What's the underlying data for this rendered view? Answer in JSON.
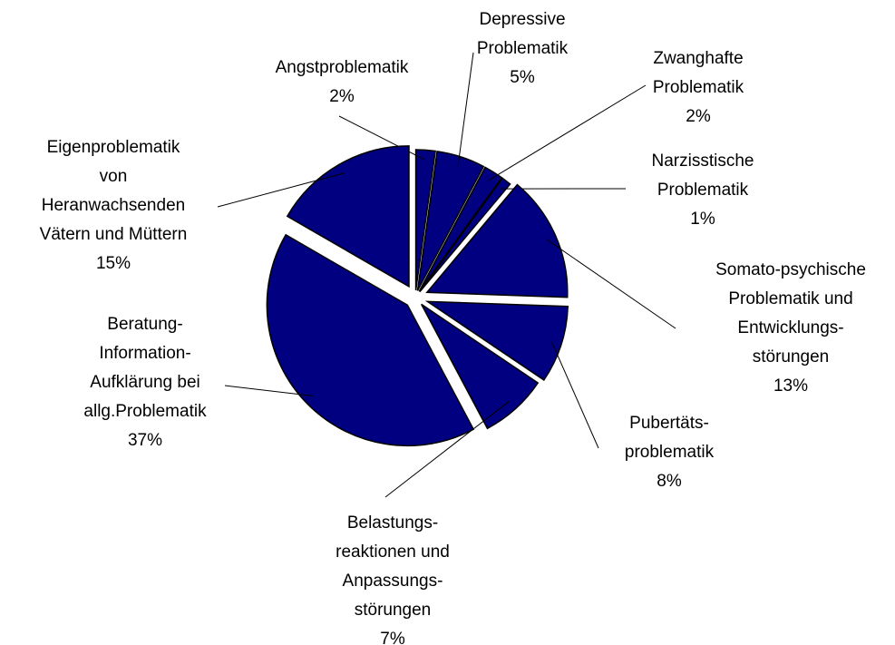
{
  "chart_data": {
    "type": "pie",
    "color": "#000080",
    "categories": [
      [
        "Angstproblematik"
      ],
      [
        "Depressive",
        "Problematik"
      ],
      [
        "Zwanghafte",
        "Problematik"
      ],
      [
        "Narzisstische",
        "Problematik"
      ],
      [
        "Somato-psychische",
        "Problematik und",
        "Entwicklungs-",
        "störungen"
      ],
      [
        "Pubertäts-",
        "problematik"
      ],
      [
        "Belastungs-",
        "reaktionen und",
        "Anpassungs-",
        "störungen"
      ],
      [
        "Beratung-",
        "Information-",
        "Aufklärung bei",
        "allg.Problematik"
      ],
      [
        "Eigenproblematik",
        "von",
        "Heranwachsenden",
        "Vätern und Müttern"
      ]
    ],
    "values": [
      2,
      5,
      2,
      1,
      13,
      8,
      7,
      37,
      15
    ],
    "value_labels": [
      "2%",
      "5%",
      "2%",
      "1%",
      "13%",
      "8%",
      "7%",
      "37%",
      "15%"
    ]
  }
}
